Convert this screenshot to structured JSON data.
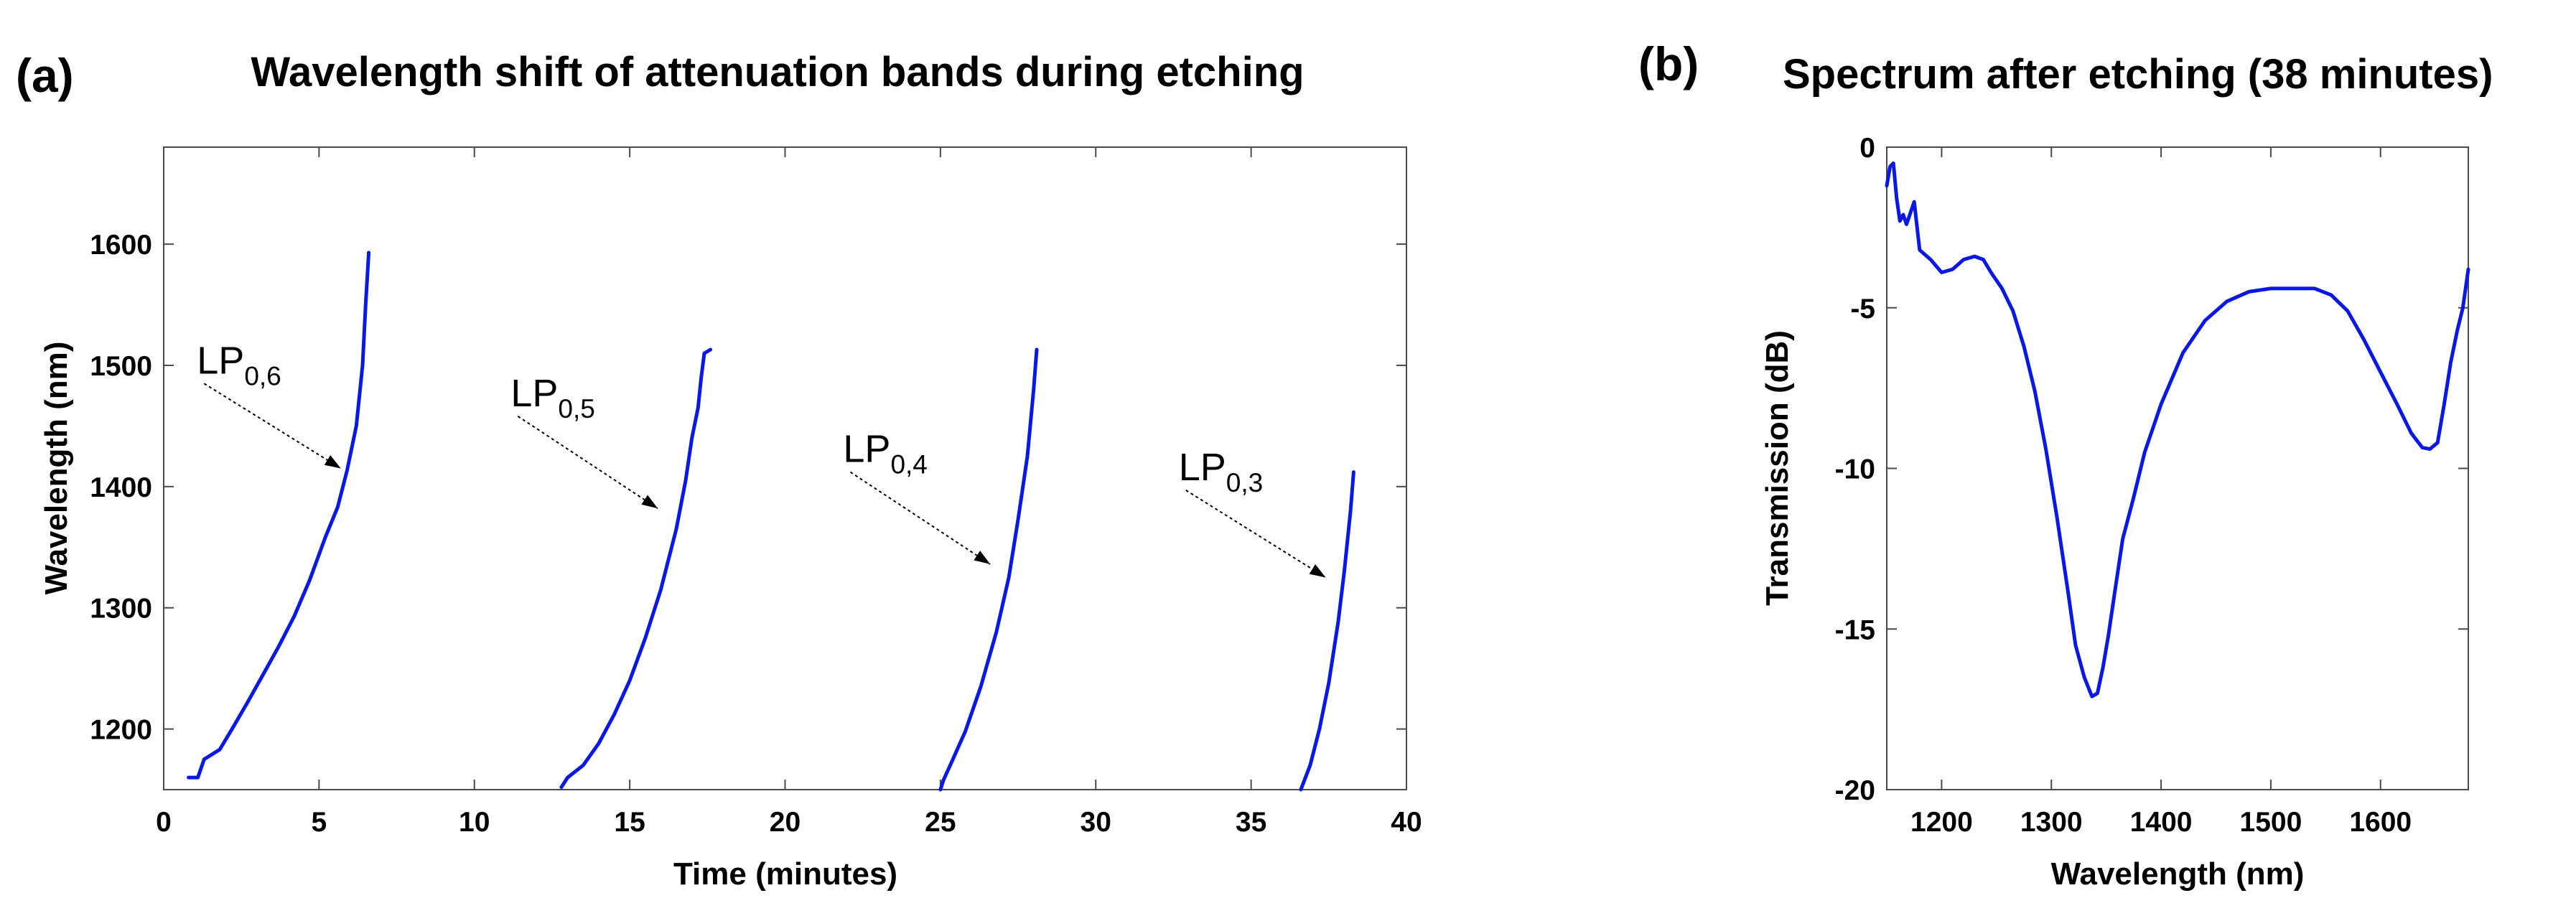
{
  "chart_data": [
    {
      "panel_label": "(a)",
      "type": "line",
      "title": "Wavelength shift of attenuation bands during etching",
      "xlabel": "Time (minutes)",
      "ylabel": "Wavelength (nm)",
      "xlim": [
        0,
        40
      ],
      "ylim": [
        1150,
        1680
      ],
      "xticks": [
        "0",
        "5",
        "10",
        "15",
        "20",
        "25",
        "30",
        "35",
        "40"
      ],
      "yticks": [
        "1200",
        "1300",
        "1400",
        "1500",
        "1600"
      ],
      "grid": false,
      "color": "#0a18e6",
      "series": [
        {
          "name": "LP0,6",
          "x": [
            0.8,
            1.1,
            1.3,
            1.8,
            2.2,
            2.7,
            3.2,
            3.7,
            4.2,
            4.7,
            5.2,
            5.6,
            5.9,
            6.2,
            6.4,
            6.5,
            6.6
          ],
          "y": [
            1160,
            1160,
            1175,
            1183,
            1200,
            1222,
            1245,
            1268,
            1293,
            1323,
            1358,
            1383,
            1413,
            1450,
            1500,
            1550,
            1593
          ]
        },
        {
          "name": "LP0,5",
          "x": [
            12.8,
            13.0,
            13.5,
            14.0,
            14.5,
            15.0,
            15.5,
            16.0,
            16.5,
            16.8,
            17.0,
            17.2,
            17.3,
            17.4,
            17.6
          ],
          "y": [
            1152,
            1160,
            1170,
            1188,
            1212,
            1240,
            1275,
            1315,
            1365,
            1405,
            1440,
            1465,
            1490,
            1510,
            1513
          ]
        },
        {
          "name": "LP0,4",
          "x": [
            25.0,
            25.1,
            25.4,
            25.8,
            26.3,
            26.8,
            27.2,
            27.5,
            27.8,
            28.0,
            28.1
          ],
          "y": [
            1150,
            1158,
            1175,
            1198,
            1235,
            1280,
            1325,
            1373,
            1425,
            1480,
            1513
          ]
        },
        {
          "name": "LP0,3",
          "x": [
            36.6,
            36.9,
            37.2,
            37.5,
            37.8,
            38.0,
            38.2,
            38.3
          ],
          "y": [
            1150,
            1170,
            1200,
            1238,
            1288,
            1330,
            1380,
            1412
          ]
        }
      ],
      "annotations": [
        {
          "base": "LP",
          "sub": "0,6",
          "x_text": 1.3,
          "y_text": 1485,
          "x_arrow": 5.7,
          "y_arrow": 1415
        },
        {
          "base": "LP",
          "sub": "0,5",
          "x_text": 11.4,
          "y_text": 1458,
          "x_arrow": 15.9,
          "y_arrow": 1382
        },
        {
          "base": "LP",
          "sub": "0,4",
          "x_text": 22.1,
          "y_text": 1412,
          "x_arrow": 26.6,
          "y_arrow": 1336
        },
        {
          "base": "LP",
          "sub": "0,3",
          "x_text": 32.9,
          "y_text": 1397,
          "x_arrow": 37.4,
          "y_arrow": 1325
        }
      ]
    },
    {
      "panel_label": "(b)",
      "type": "line",
      "title": "Spectrum after etching (38 minutes)",
      "xlabel": "Wavelength (nm)",
      "ylabel": "Transmission (dB)",
      "xlim": [
        1150,
        1680
      ],
      "ylim": [
        -20,
        0
      ],
      "xticks": [
        "1200",
        "1300",
        "1400",
        "1500",
        "1600"
      ],
      "yticks": [
        "-20",
        "-15",
        "-10",
        "-5",
        "0"
      ],
      "grid": false,
      "color": "#0a18e6",
      "series": [
        {
          "name": "Spectrum",
          "x": [
            1150,
            1153,
            1156,
            1159,
            1162,
            1165,
            1168,
            1171,
            1175,
            1180,
            1190,
            1200,
            1210,
            1220,
            1230,
            1238,
            1245,
            1255,
            1265,
            1275,
            1285,
            1295,
            1305,
            1315,
            1322,
            1330,
            1337,
            1342,
            1347,
            1352,
            1358,
            1365,
            1375,
            1385,
            1400,
            1420,
            1440,
            1460,
            1480,
            1500,
            1520,
            1540,
            1555,
            1570,
            1585,
            1600,
            1615,
            1628,
            1638,
            1645,
            1652,
            1658,
            1664,
            1670,
            1675,
            1680
          ],
          "y": [
            -1.2,
            -0.6,
            -0.5,
            -1.6,
            -2.3,
            -2.1,
            -2.4,
            -2.1,
            -1.7,
            -3.2,
            -3.5,
            -3.9,
            -3.8,
            -3.5,
            -3.4,
            -3.5,
            -3.9,
            -4.4,
            -5.1,
            -6.2,
            -7.6,
            -9.4,
            -11.5,
            -13.8,
            -15.5,
            -16.5,
            -17.1,
            -17.0,
            -16.2,
            -15.2,
            -13.8,
            -12.2,
            -10.9,
            -9.5,
            -8.0,
            -6.4,
            -5.4,
            -4.8,
            -4.5,
            -4.4,
            -4.4,
            -4.4,
            -4.6,
            -5.1,
            -6.0,
            -7.0,
            -8.0,
            -8.9,
            -9.35,
            -9.4,
            -9.2,
            -8.0,
            -6.7,
            -5.7,
            -5.0,
            -3.8
          ]
        }
      ]
    }
  ]
}
